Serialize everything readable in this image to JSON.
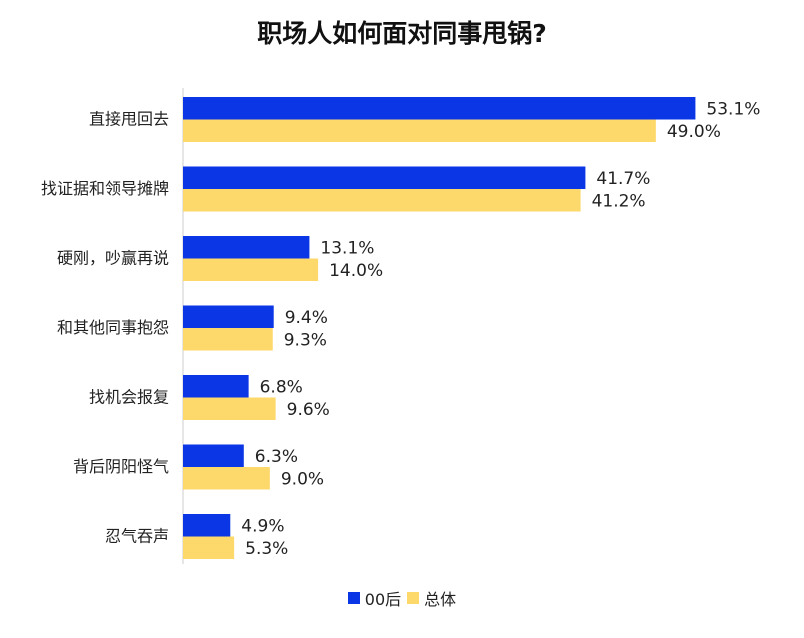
{
  "chart_data": {
    "type": "bar",
    "orientation": "horizontal",
    "title": "职场人如何面对同事甩锅?",
    "categories": [
      "直接甩回去",
      "找证据和领导摊牌",
      "硬刚，吵赢再说",
      "和其他同事抱怨",
      "找机会报复",
      "背后阴阳怪气",
      "忍气吞声"
    ],
    "series": [
      {
        "name": "00后",
        "color": "#0a36e6",
        "values": [
          53.1,
          41.7,
          13.1,
          9.4,
          6.8,
          6.3,
          4.9
        ],
        "labels": [
          "53.1%",
          "41.7%",
          "13.1%",
          "9.4%",
          "6.8%",
          "6.3%",
          "4.9%"
        ]
      },
      {
        "name": "总体",
        "color": "#fdd86a",
        "values": [
          49.0,
          41.2,
          14.0,
          9.3,
          9.6,
          9.0,
          5.3
        ],
        "labels": [
          "49.0%",
          "41.2%",
          "14.0%",
          "9.3%",
          "9.6%",
          "9.0%",
          "5.3%"
        ]
      }
    ],
    "legend_position": "bottom",
    "grid": false,
    "value_unit": "%"
  }
}
